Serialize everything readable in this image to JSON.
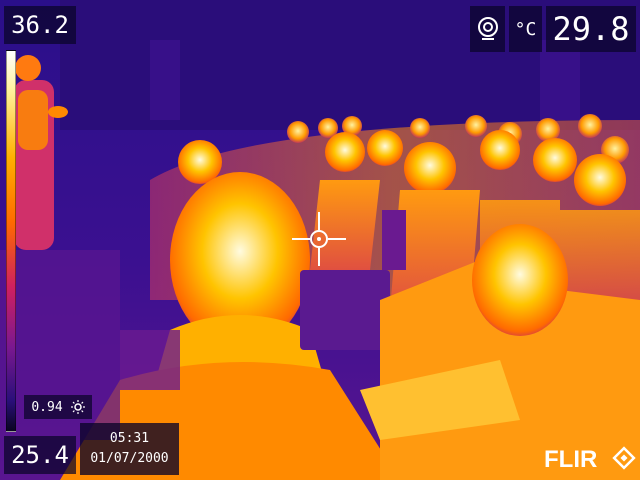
{
  "camera": {
    "max_temp": "36.2",
    "spot_temp": "29.8",
    "unit": "°C",
    "min_temp": "25.4",
    "emissivity": "0.94",
    "time": "05:31",
    "date": "01/07/2000",
    "brand": "FLIR"
  },
  "colors": {
    "hot": "#ffffff",
    "warm": "#ffb000",
    "mid": "#d02060",
    "cold": "#2a0f7a"
  }
}
